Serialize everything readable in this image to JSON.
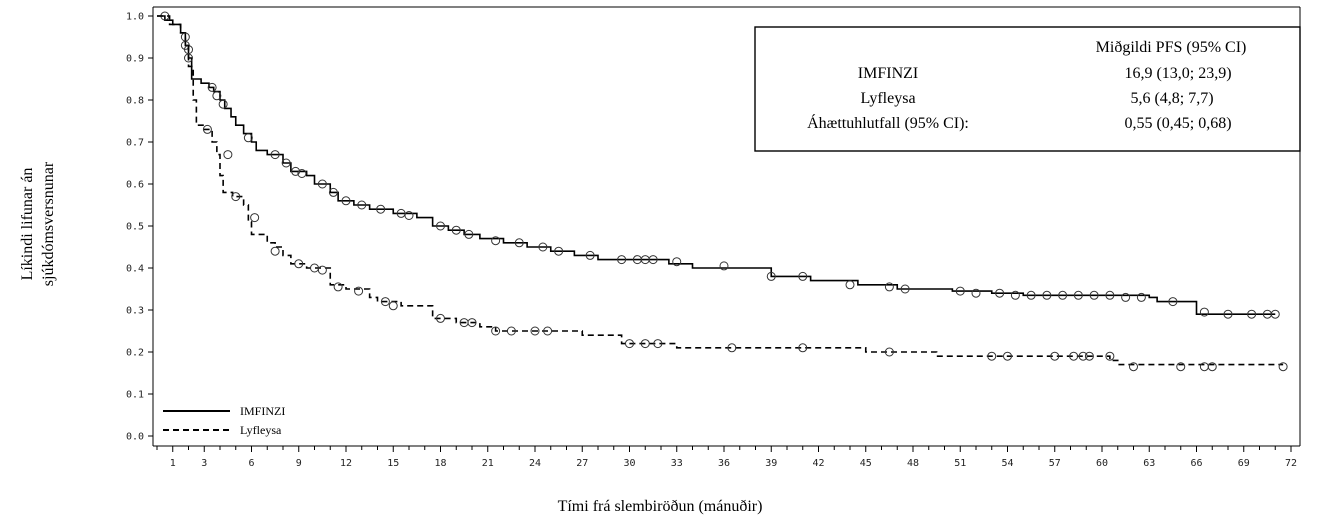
{
  "chart_data": {
    "type": "line",
    "ylabel_line1": "Líkindi lifunar án",
    "ylabel_line2": "sjúkdómsversnunar",
    "xlabel": "Tími frá slembiröðun (mánuðir)",
    "xlim": [
      0,
      73
    ],
    "ylim": [
      0,
      1
    ],
    "x_ticks": [
      1,
      3,
      6,
      9,
      12,
      15,
      18,
      21,
      24,
      27,
      30,
      33,
      36,
      39,
      42,
      45,
      48,
      51,
      54,
      57,
      60,
      63,
      66,
      69,
      72
    ],
    "y_ticks": [
      "0.0",
      "0.1",
      "0.2",
      "0.3",
      "0.4",
      "0.5",
      "0.6",
      "0.7",
      "0.8",
      "0.9",
      "1.0"
    ],
    "legend_position": "bottom-left",
    "series": [
      {
        "name": "IMFINZI",
        "style": "solid",
        "color": "#000000",
        "steps": [
          [
            0,
            1.0
          ],
          [
            0.5,
            0.99
          ],
          [
            1.0,
            0.98
          ],
          [
            1.5,
            0.96
          ],
          [
            1.8,
            0.93
          ],
          [
            2.0,
            0.9
          ],
          [
            2.2,
            0.85
          ],
          [
            2.8,
            0.84
          ],
          [
            3.3,
            0.83
          ],
          [
            3.6,
            0.82
          ],
          [
            4.0,
            0.8
          ],
          [
            4.3,
            0.78
          ],
          [
            4.7,
            0.76
          ],
          [
            5.0,
            0.74
          ],
          [
            5.5,
            0.72
          ],
          [
            6.0,
            0.7
          ],
          [
            6.3,
            0.68
          ],
          [
            7.0,
            0.67
          ],
          [
            8.0,
            0.65
          ],
          [
            8.5,
            0.63
          ],
          [
            9.5,
            0.62
          ],
          [
            10.0,
            0.6
          ],
          [
            11.0,
            0.58
          ],
          [
            11.5,
            0.56
          ],
          [
            12.5,
            0.55
          ],
          [
            13.5,
            0.54
          ],
          [
            15.0,
            0.53
          ],
          [
            16.5,
            0.52
          ],
          [
            17.5,
            0.5
          ],
          [
            18.5,
            0.49
          ],
          [
            19.5,
            0.48
          ],
          [
            20.5,
            0.47
          ],
          [
            22.0,
            0.46
          ],
          [
            23.5,
            0.45
          ],
          [
            25.0,
            0.44
          ],
          [
            26.5,
            0.43
          ],
          [
            28.0,
            0.42
          ],
          [
            32.5,
            0.41
          ],
          [
            34.0,
            0.4
          ],
          [
            39.0,
            0.38
          ],
          [
            41.5,
            0.37
          ],
          [
            44.5,
            0.36
          ],
          [
            47.0,
            0.35
          ],
          [
            50.5,
            0.345
          ],
          [
            53.0,
            0.34
          ],
          [
            55.0,
            0.335
          ],
          [
            63.0,
            0.33
          ],
          [
            63.5,
            0.32
          ],
          [
            66.0,
            0.29
          ],
          [
            71.0,
            0.29
          ]
        ],
        "censored": [
          [
            0.5,
            1.0
          ],
          [
            1.8,
            0.93
          ],
          [
            2.0,
            0.92
          ],
          [
            3.5,
            0.83
          ],
          [
            3.8,
            0.81
          ],
          [
            4.2,
            0.79
          ],
          [
            5.8,
            0.71
          ],
          [
            7.5,
            0.67
          ],
          [
            8.2,
            0.65
          ],
          [
            8.8,
            0.63
          ],
          [
            9.2,
            0.625
          ],
          [
            10.5,
            0.6
          ],
          [
            11.2,
            0.58
          ],
          [
            12.0,
            0.56
          ],
          [
            13.0,
            0.55
          ],
          [
            14.2,
            0.54
          ],
          [
            15.5,
            0.53
          ],
          [
            16.0,
            0.525
          ],
          [
            18.0,
            0.5
          ],
          [
            19.0,
            0.49
          ],
          [
            19.8,
            0.48
          ],
          [
            21.5,
            0.465
          ],
          [
            23.0,
            0.46
          ],
          [
            24.5,
            0.45
          ],
          [
            25.5,
            0.44
          ],
          [
            27.5,
            0.43
          ],
          [
            29.5,
            0.42
          ],
          [
            30.5,
            0.42
          ],
          [
            31.0,
            0.42
          ],
          [
            31.5,
            0.42
          ],
          [
            33.0,
            0.415
          ],
          [
            36.0,
            0.405
          ],
          [
            39.0,
            0.38
          ],
          [
            41.0,
            0.38
          ],
          [
            44.0,
            0.36
          ],
          [
            46.5,
            0.355
          ],
          [
            47.5,
            0.35
          ],
          [
            51.0,
            0.345
          ],
          [
            52.0,
            0.34
          ],
          [
            53.5,
            0.34
          ],
          [
            54.5,
            0.335
          ],
          [
            55.5,
            0.335
          ],
          [
            56.5,
            0.335
          ],
          [
            57.5,
            0.335
          ],
          [
            58.5,
            0.335
          ],
          [
            59.5,
            0.335
          ],
          [
            60.5,
            0.335
          ],
          [
            61.5,
            0.33
          ],
          [
            62.5,
            0.33
          ],
          [
            64.5,
            0.32
          ],
          [
            66.5,
            0.295
          ],
          [
            68.0,
            0.29
          ],
          [
            69.5,
            0.29
          ],
          [
            70.5,
            0.29
          ],
          [
            71.0,
            0.29
          ]
        ]
      },
      {
        "name": "Lyfleysa",
        "style": "dashed",
        "color": "#000000",
        "steps": [
          [
            0,
            1.0
          ],
          [
            0.8,
            0.98
          ],
          [
            1.5,
            0.96
          ],
          [
            1.8,
            0.93
          ],
          [
            2.0,
            0.88
          ],
          [
            2.3,
            0.8
          ],
          [
            2.5,
            0.74
          ],
          [
            3.0,
            0.73
          ],
          [
            3.5,
            0.7
          ],
          [
            3.8,
            0.67
          ],
          [
            4.0,
            0.62
          ],
          [
            4.2,
            0.58
          ],
          [
            4.8,
            0.57
          ],
          [
            5.5,
            0.55
          ],
          [
            5.8,
            0.51
          ],
          [
            6.0,
            0.48
          ],
          [
            7.0,
            0.46
          ],
          [
            7.5,
            0.45
          ],
          [
            8.0,
            0.43
          ],
          [
            8.5,
            0.41
          ],
          [
            9.5,
            0.4
          ],
          [
            11.0,
            0.36
          ],
          [
            12.0,
            0.35
          ],
          [
            13.5,
            0.33
          ],
          [
            14.0,
            0.32
          ],
          [
            15.5,
            0.31
          ],
          [
            17.5,
            0.28
          ],
          [
            19.0,
            0.27
          ],
          [
            20.5,
            0.26
          ],
          [
            21.5,
            0.25
          ],
          [
            27.0,
            0.24
          ],
          [
            29.5,
            0.22
          ],
          [
            33.0,
            0.21
          ],
          [
            45.0,
            0.2
          ],
          [
            49.5,
            0.19
          ],
          [
            60.5,
            0.18
          ],
          [
            61.0,
            0.17
          ],
          [
            71.5,
            0.17
          ]
        ],
        "censored": [
          [
            1.8,
            0.95
          ],
          [
            2.0,
            0.9
          ],
          [
            3.2,
            0.73
          ],
          [
            4.5,
            0.67
          ],
          [
            5.0,
            0.57
          ],
          [
            6.2,
            0.52
          ],
          [
            7.5,
            0.44
          ],
          [
            9.0,
            0.41
          ],
          [
            10.0,
            0.4
          ],
          [
            10.5,
            0.395
          ],
          [
            11.5,
            0.355
          ],
          [
            12.8,
            0.345
          ],
          [
            14.5,
            0.32
          ],
          [
            15.0,
            0.31
          ],
          [
            18.0,
            0.28
          ],
          [
            19.5,
            0.27
          ],
          [
            20.0,
            0.27
          ],
          [
            21.5,
            0.25
          ],
          [
            22.5,
            0.25
          ],
          [
            24.0,
            0.25
          ],
          [
            24.8,
            0.25
          ],
          [
            30.0,
            0.22
          ],
          [
            31.0,
            0.22
          ],
          [
            31.8,
            0.22
          ],
          [
            36.5,
            0.21
          ],
          [
            41.0,
            0.21
          ],
          [
            46.5,
            0.2
          ],
          [
            53.0,
            0.19
          ],
          [
            54.0,
            0.19
          ],
          [
            57.0,
            0.19
          ],
          [
            58.2,
            0.19
          ],
          [
            58.8,
            0.19
          ],
          [
            59.2,
            0.19
          ],
          [
            60.5,
            0.19
          ],
          [
            62.0,
            0.165
          ],
          [
            65.0,
            0.165
          ],
          [
            66.5,
            0.165
          ],
          [
            67.0,
            0.165
          ],
          [
            71.5,
            0.165
          ]
        ]
      }
    ],
    "legend": [
      {
        "label": "IMFINZI",
        "style": "solid"
      },
      {
        "label": "Lyfleysa",
        "style": "dashed"
      }
    ],
    "annotation": {
      "header": "Miðgildi PFS (95% CI)",
      "rows": [
        {
          "label": "IMFINZI",
          "value": "16,9 (13,0; 23,9)"
        },
        {
          "label": "Lyfleysa",
          "value": "5,6 (4,8; 7,7)"
        },
        {
          "label": "Áhættuhlutfall (95% CI):",
          "value": "0,55 (0,45; 0,68)"
        }
      ]
    }
  }
}
